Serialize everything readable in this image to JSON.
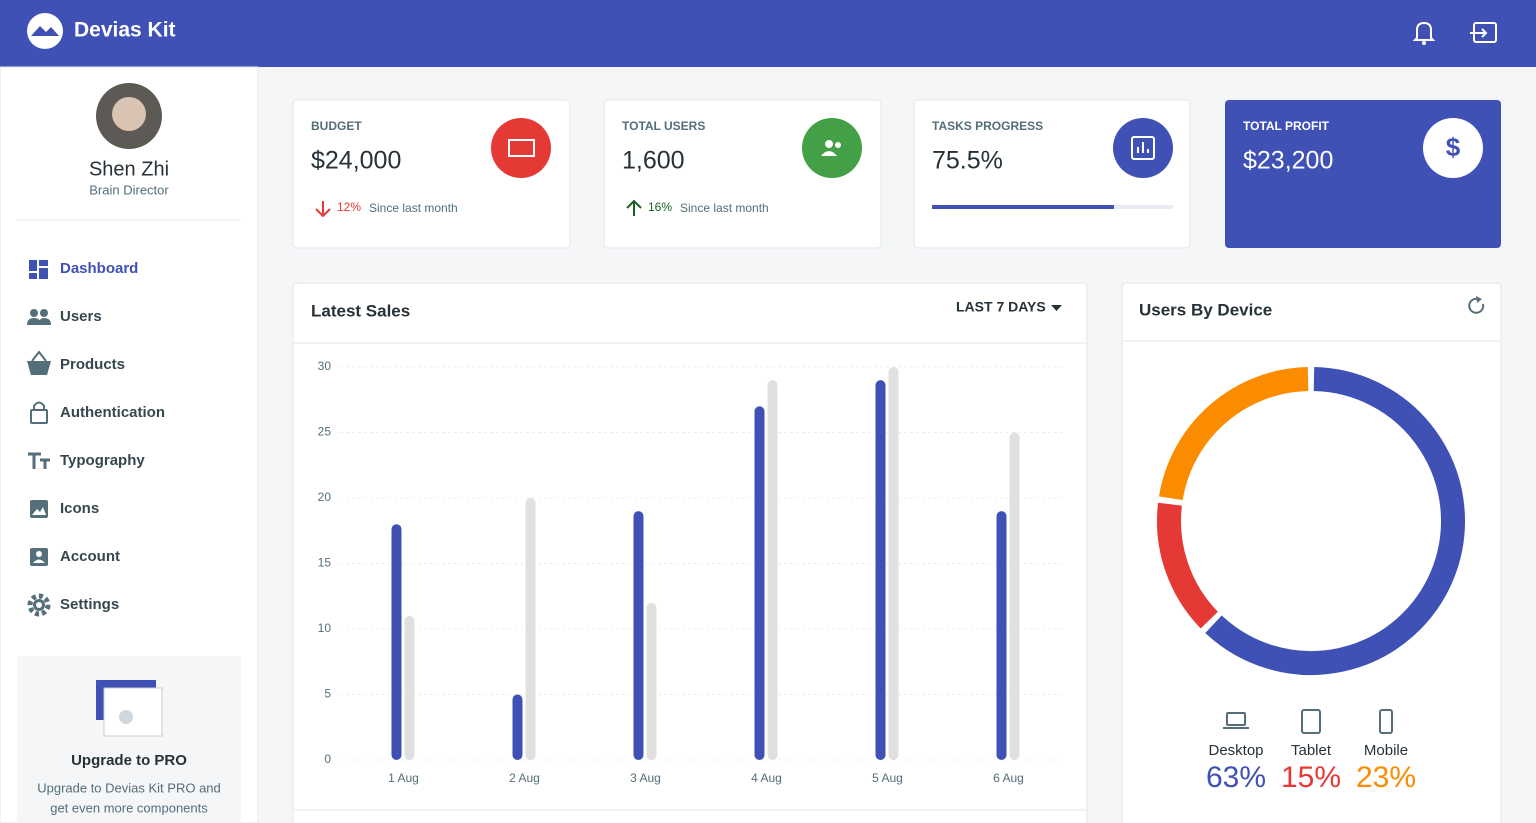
{
  "header": {
    "brand": "Devias Kit"
  },
  "sidebar": {
    "user_name": "Shen Zhi",
    "user_role": "Brain Director",
    "nav": [
      "Dashboard",
      "Users",
      "Products",
      "Authentication",
      "Typography",
      "Icons",
      "Account",
      "Settings"
    ],
    "upgrade": {
      "title": "Upgrade to PRO",
      "text": [
        "Upgrade to Devias Kit PRO and",
        "get even more components"
      ]
    }
  },
  "cards": [
    {
      "title": "BUDGET",
      "value": "$24,000",
      "change": "12%",
      "note": "Since last month"
    },
    {
      "title": "TOTAL USERS",
      "value": "1,600",
      "change": "16%",
      "note": "Since last month"
    },
    {
      "title": "TASKS PROGRESS",
      "value": "75.5%",
      "progress": 75.5
    },
    {
      "title": "TOTAL PROFIT",
      "value": "$23,200"
    }
  ],
  "sales_card": {
    "range_button": "LAST 7 DAYS"
  },
  "chart_data": [
    {
      "type": "bar",
      "title": "Latest Sales",
      "categories": [
        "1 Aug",
        "2 Aug",
        "3 Aug",
        "4 Aug",
        "5 Aug",
        "6 Aug"
      ],
      "series": [
        {
          "color": "#3f51b5",
          "values": [
            18,
            5,
            19,
            27,
            29,
            19
          ]
        },
        {
          "color": "#e0e0e0",
          "values": [
            11,
            20,
            12,
            29,
            30,
            25
          ]
        }
      ],
      "ylim": [
        0,
        30
      ],
      "yticks": [
        0,
        5,
        10,
        15,
        20,
        25,
        30
      ],
      "grid": true
    },
    {
      "type": "doughnut",
      "title": "Users By Device",
      "categories": [
        "Desktop",
        "Tablet",
        "Mobile"
      ],
      "values": [
        63,
        15,
        23
      ],
      "value_labels": [
        "63%",
        "15%",
        "23%"
      ],
      "colors": [
        "#3f51b5",
        "#e53935",
        "#fb8c00"
      ]
    }
  ]
}
